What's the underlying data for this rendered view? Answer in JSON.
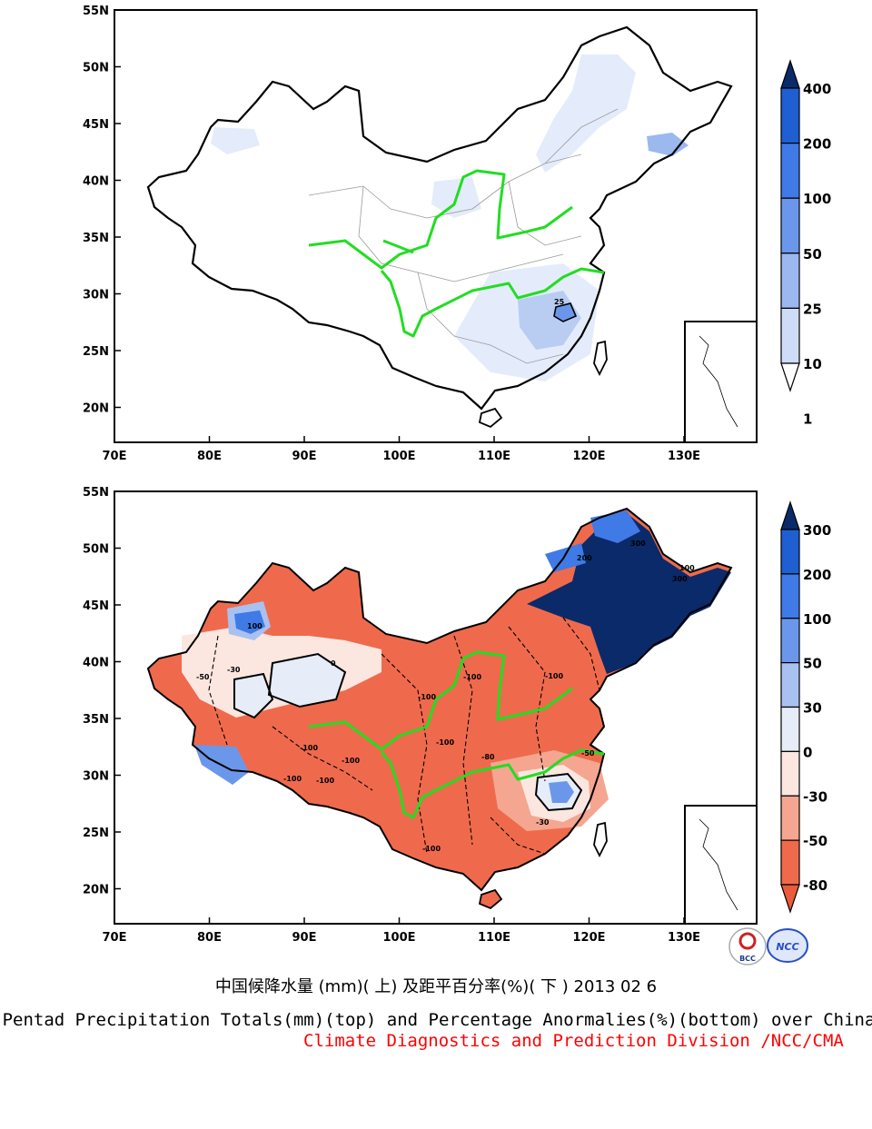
{
  "colors": {
    "outline": "#000000",
    "rivers": "#22dd22",
    "provinces": "#9a9a9a",
    "background": "#ffffff",
    "title_en": "#000000",
    "credit": "#ff0000"
  },
  "top_map": {
    "lat_ticks": [
      "55N",
      "50N",
      "45N",
      "40N",
      "35N",
      "30N",
      "25N",
      "20N"
    ],
    "lon_ticks": [
      "70E",
      "80E",
      "90E",
      "100E",
      "110E",
      "120E",
      "130E"
    ],
    "colorbar": {
      "labels": [
        "400",
        "200",
        "100",
        "50",
        "25",
        "10",
        "1"
      ],
      "colors": [
        "#0a2a6a",
        "#1f5fd1",
        "#3f7ae6",
        "#6b97ea",
        "#9bb8ef",
        "#cfdcf7",
        "#ffffff"
      ]
    },
    "contour_labels": [
      "25"
    ]
  },
  "bottom_map": {
    "lat_ticks": [
      "55N",
      "50N",
      "45N",
      "40N",
      "35N",
      "30N",
      "25N",
      "20N"
    ],
    "lon_ticks": [
      "70E",
      "80E",
      "90E",
      "100E",
      "110E",
      "120E",
      "130E"
    ],
    "colorbar": {
      "labels": [
        "300",
        "200",
        "100",
        "50",
        "30",
        "0",
        "-30",
        "-50",
        "-80"
      ],
      "colors": [
        "#0a2a6a",
        "#1f5fd1",
        "#3f7ae6",
        "#6b97ea",
        "#a9c1f0",
        "#e6ecf8",
        "#fbe6e0",
        "#f4a690",
        "#ef6a4c",
        "#ea5a3c"
      ]
    },
    "contour_labels": [
      "-100",
      "-100",
      "-100",
      "-100",
      "-100",
      "-80",
      "-50",
      "-30",
      "0",
      "100",
      "300",
      "300",
      "200",
      "100",
      "-100",
      "-100",
      "-100",
      "-100",
      "-50",
      "-30"
    ]
  },
  "logos": {
    "left": "BCC",
    "right": "NCC"
  },
  "title_cn": "中国候降水量 (mm)( 上) 及距平百分率(%)( 下 ) 2013 02 6",
  "title_en": "Pentad Precipitation Totals(mm)(top) and Percentage Anormalies(%)(bottom) over China",
  "credit": "Climate Diagnostics and Prediction Division /NCC/CMA"
}
